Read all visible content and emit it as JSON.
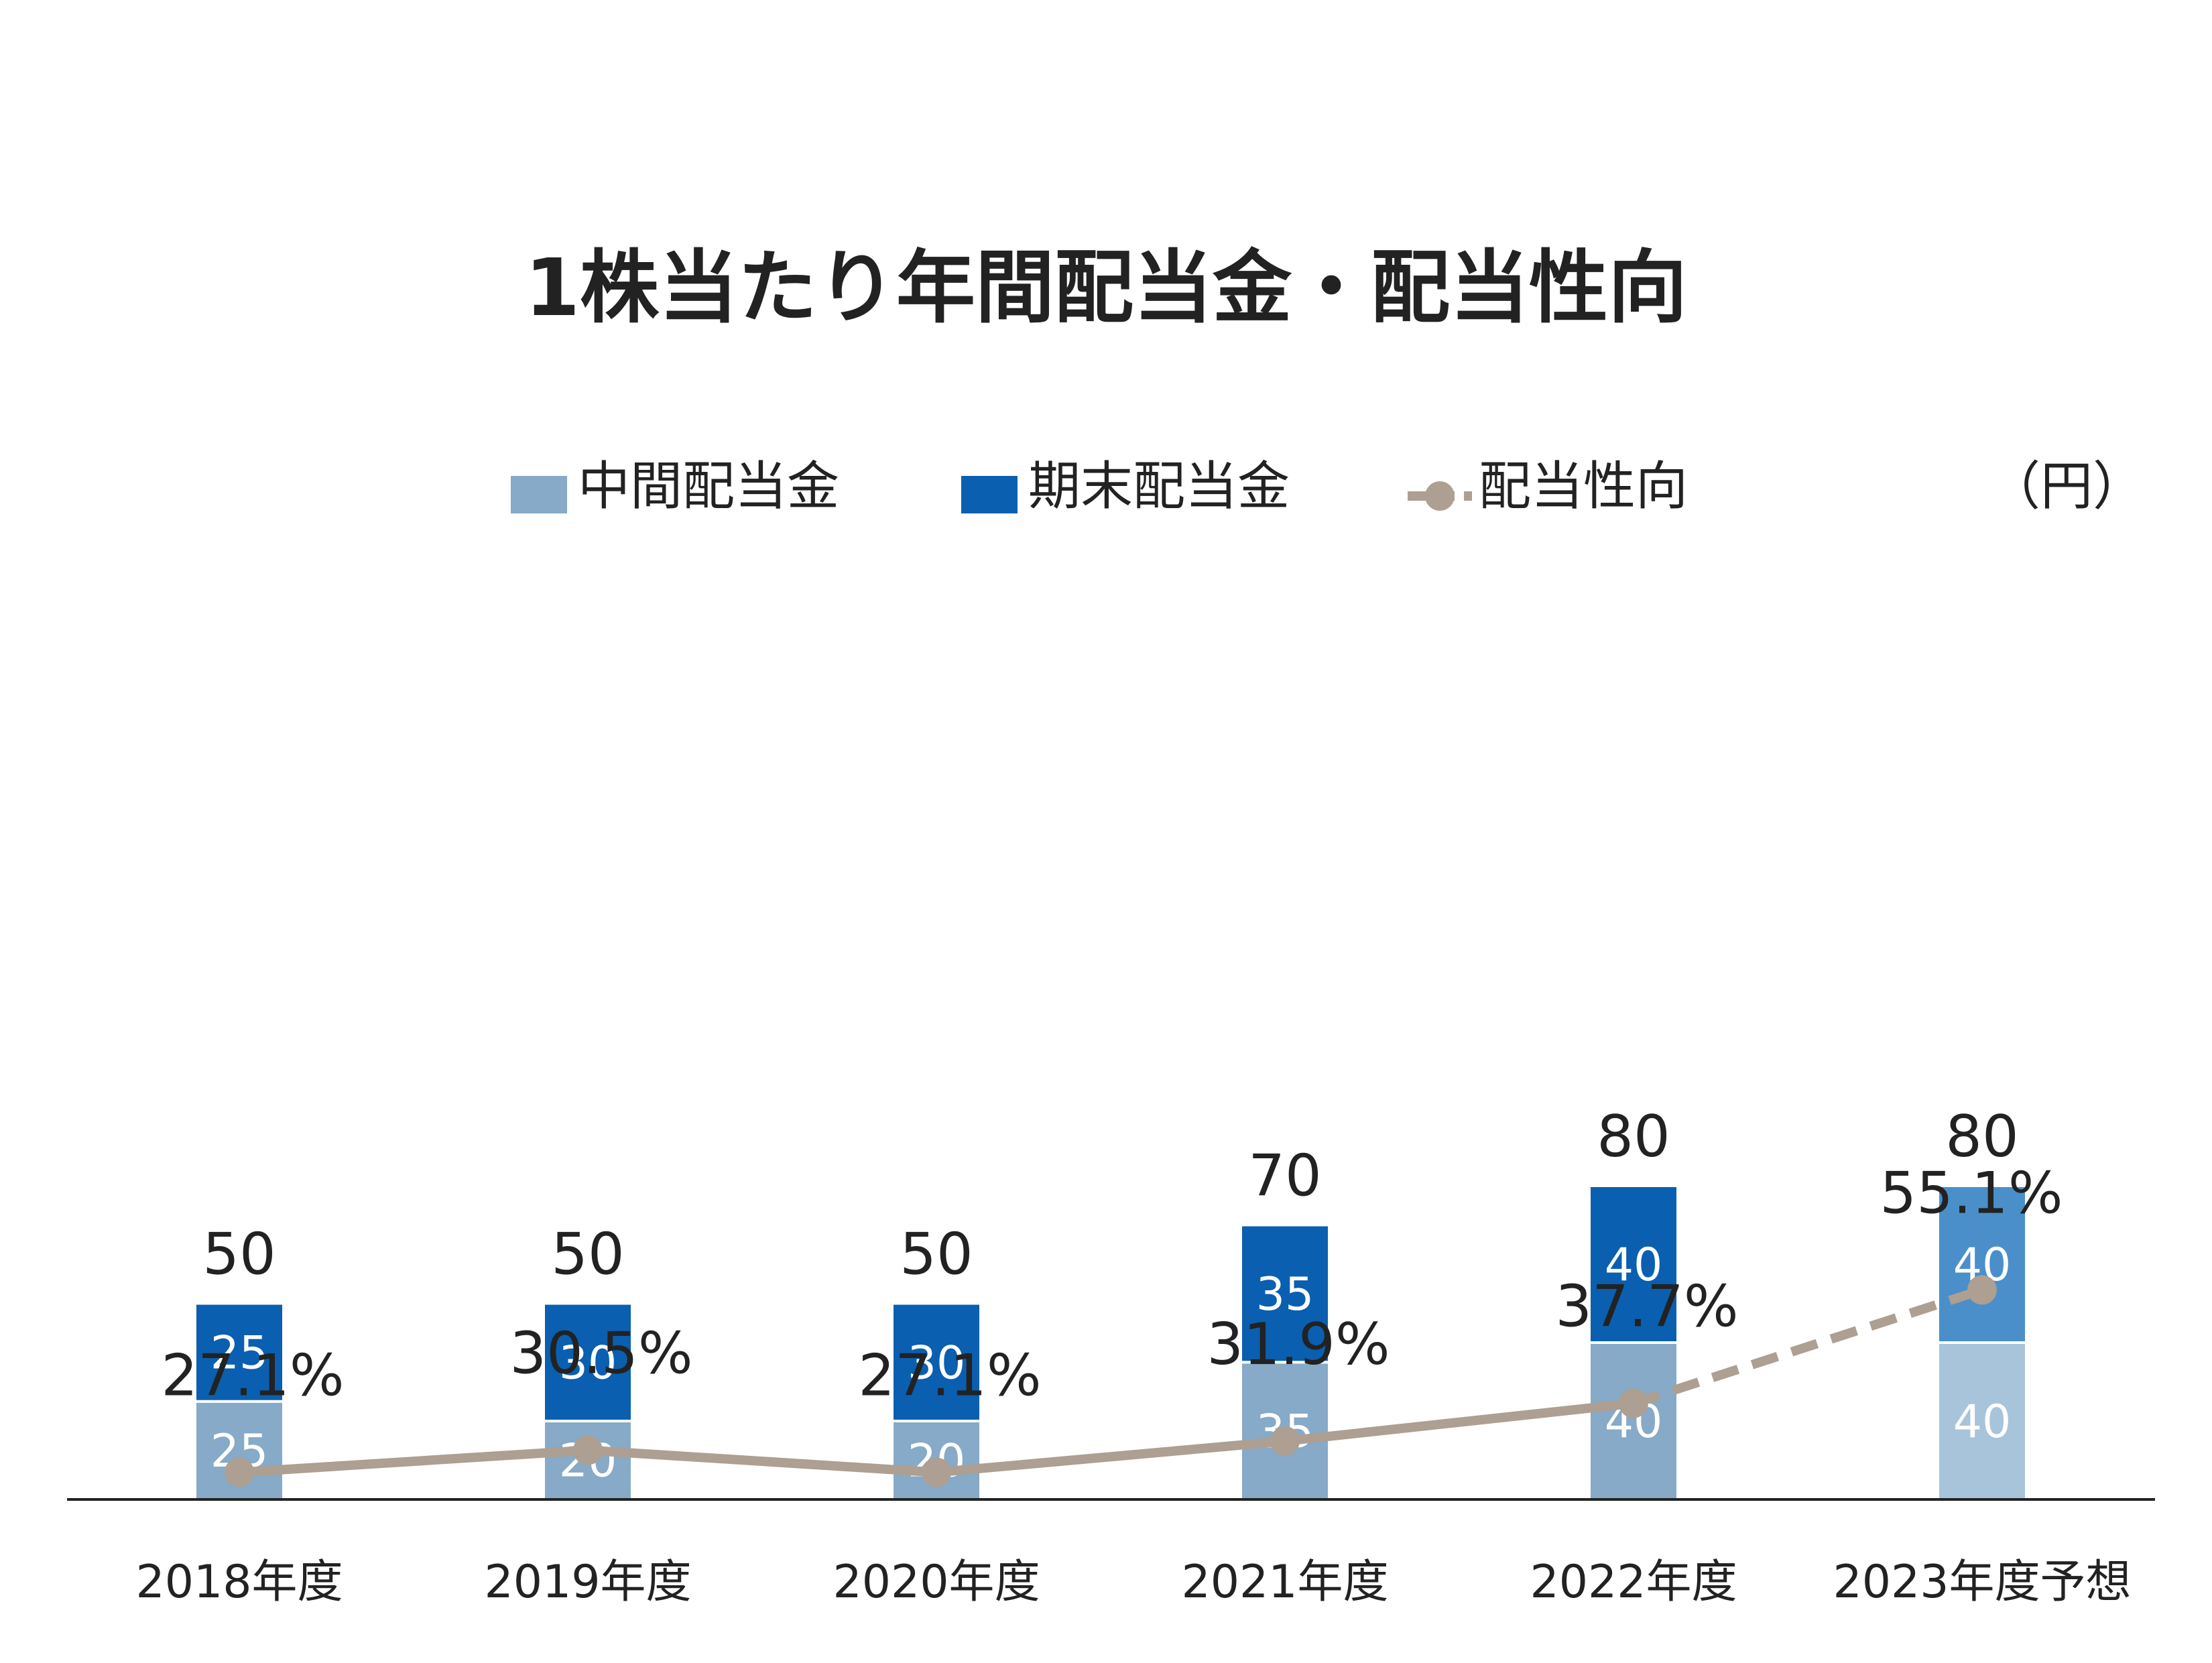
{
  "chart_data": {
    "type": "bar",
    "title": "1株当たり年間配当金・配当性向",
    "unit_label": "（円）",
    "categories": [
      "2018年度",
      "2019年度",
      "2020年度",
      "2021年度",
      "2022年度",
      "2023年度予想"
    ],
    "series": [
      {
        "name": "中間配当金",
        "kind": "bar",
        "values": [
          25,
          20,
          20,
          35,
          40,
          40
        ],
        "color": "#86aac7",
        "forecast_color": "#a8c4da"
      },
      {
        "name": "期末配当金",
        "kind": "bar",
        "values": [
          25,
          30,
          30,
          35,
          40,
          40
        ],
        "color": "#0a5fb0",
        "forecast_color": "#4a8fc9"
      },
      {
        "name": "配当性向",
        "kind": "line",
        "values": [
          27.1,
          30.5,
          27.1,
          31.9,
          37.7,
          55.1
        ],
        "labels": [
          "27.1%",
          "30.5%",
          "27.1%",
          "31.9%",
          "37.7%",
          "55.1%"
        ],
        "color": "#ad9f92",
        "forecast_from_index": 4
      }
    ],
    "totals": [
      50,
      50,
      50,
      70,
      80,
      80
    ],
    "forecast_index": 5,
    "ylim": [
      0,
      130
    ],
    "line_ylim": [
      0,
      135
    ],
    "legend_position": "top",
    "grid": false
  }
}
